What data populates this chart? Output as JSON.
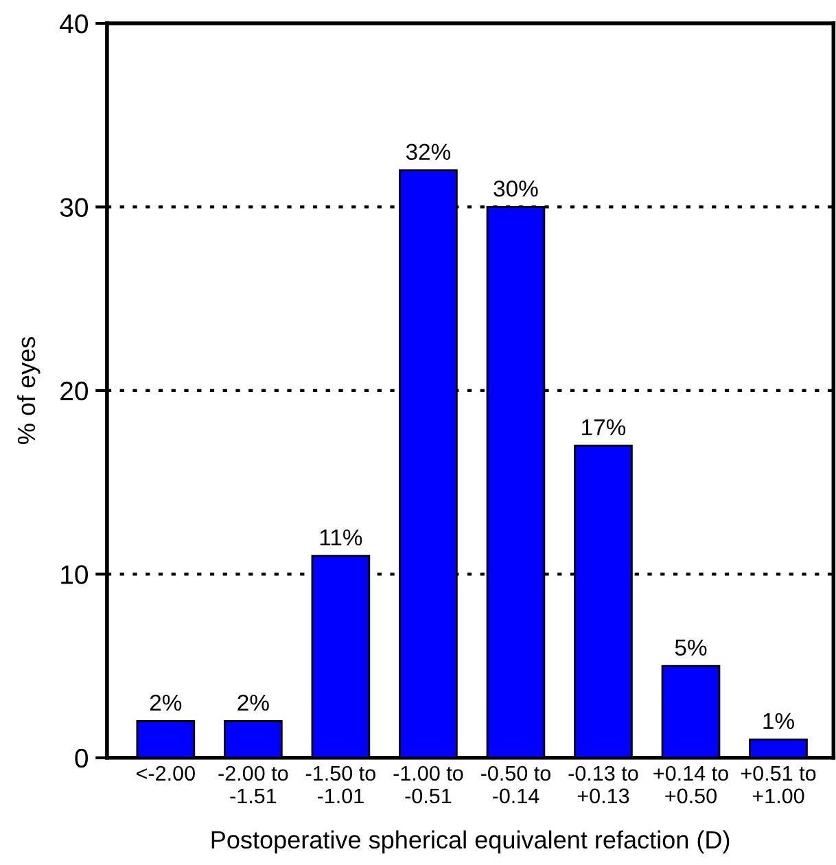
{
  "chart_data": {
    "type": "bar",
    "xlabel": "Postoperative spherical equivalent refaction (D)",
    "ylabel": "% of eyes",
    "categories": [
      "<-2.00",
      "-2.00 to\n-1.51",
      "-1.50 to\n-1.01",
      "-1.00 to\n-0.51",
      "-0.50 to\n-0.14",
      "-0.13 to\n+0.13",
      "+0.14 to\n+0.50",
      "+0.51 to\n+1.00"
    ],
    "values": [
      2,
      2,
      11,
      32,
      30,
      17,
      5,
      1
    ],
    "value_labels": [
      "2%",
      "2%",
      "11%",
      "32%",
      "30%",
      "17%",
      "5%",
      "1%"
    ],
    "color": "#0000ff",
    "ylim": [
      0,
      40
    ],
    "yticks": [
      0,
      10,
      20,
      30,
      40
    ],
    "grid": "y",
    "legend": false
  }
}
